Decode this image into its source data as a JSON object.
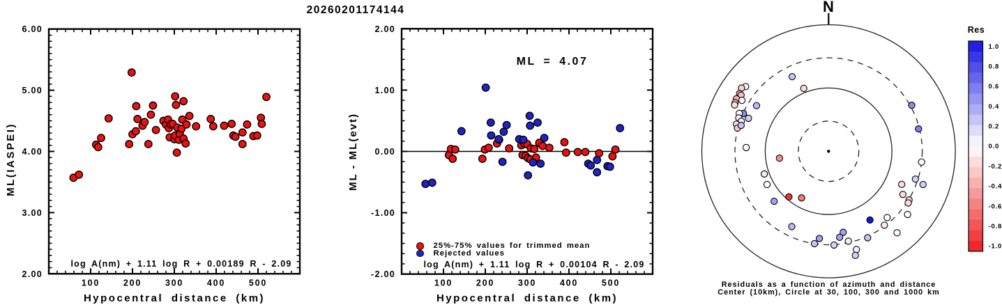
{
  "title": "20260201174144",
  "left_panel": {
    "ylabel": "ML(IASPEI)",
    "xlabel": "Hypocentral distance (km)",
    "formula": "log A(nm) + 1.11 log R + 0.00189 R - 2.09",
    "ytick_labels": [
      "6.00",
      "5.00",
      "4.00",
      "3.00",
      "2.00"
    ],
    "xtick_labels": [
      "100",
      "200",
      "300",
      "400",
      "500"
    ]
  },
  "middle_panel": {
    "ylabel": "ML - ML(evt)",
    "xlabel": "Hypocentral distance (km)",
    "ml_annotation": "ML = 4.07",
    "formula": "log A(nm) + 1.11 log R + 0.00104 R - 2.09",
    "legend": [
      {
        "label": "25%-75% values for trimmed mean",
        "color": "#ee1111"
      },
      {
        "label": "Rejected values",
        "color": "#2222cc"
      }
    ],
    "ytick_labels": [
      "2.00",
      "1.00",
      "0.00",
      "-1.00",
      "-2.00"
    ],
    "xtick_labels": [
      "100",
      "200",
      "300",
      "400",
      "500"
    ]
  },
  "polar_panel": {
    "north_label": "N",
    "caption_line1": "Residuals as a function of azimuth and distance",
    "caption_line2": "Center (10km), Circle at 30, 100, 300 and 1000 km"
  },
  "colorbar": {
    "title": "Res",
    "tick_labels": [
      "1.0",
      "0.8",
      "0.6",
      "0.4",
      "0.2",
      "0.0",
      "-0.2",
      "-0.4",
      "-0.6",
      "-0.8",
      "-1.0"
    ],
    "blue_hex": "#1414e1",
    "red_hex": "#ee1e1e"
  },
  "chart_data": [
    {
      "type": "scatter",
      "panel": "left",
      "title": "20260201174144",
      "xlabel": "Hypocentral distance (km)",
      "ylabel": "ML(IASPEI)",
      "xlim": [
        0,
        600
      ],
      "ylim": [
        2,
        6
      ],
      "xticks": [
        100,
        200,
        300,
        400,
        500
      ],
      "yticks": [
        6,
        5,
        4,
        3,
        2
      ],
      "x_minor_step": 20,
      "y_minor_divisions": 10,
      "annotation": "log A(nm) + 1.11 log R + 0.00189 R - 2.09",
      "marker_color": "#ee1111",
      "points": [
        [
          59,
          3.57
        ],
        [
          72,
          3.62
        ],
        [
          113,
          4.11
        ],
        [
          118,
          4.07
        ],
        [
          125,
          4.22
        ],
        [
          143,
          4.54
        ],
        [
          192,
          4.12
        ],
        [
          198,
          5.29
        ],
        [
          200,
          4.28
        ],
        [
          208,
          4.33
        ],
        [
          209,
          4.74
        ],
        [
          212,
          4.53
        ],
        [
          224,
          4.42
        ],
        [
          229,
          4.48
        ],
        [
          238,
          4.12
        ],
        [
          244,
          4.6
        ],
        [
          249,
          4.75
        ],
        [
          256,
          4.35
        ],
        [
          274,
          4.5
        ],
        [
          280,
          4.44
        ],
        [
          285,
          4.52
        ],
        [
          287,
          4.38
        ],
        [
          289,
          4.23
        ],
        [
          291,
          4.44
        ],
        [
          296,
          4.45
        ],
        [
          300,
          4.2
        ],
        [
          302,
          4.26
        ],
        [
          302,
          4.9
        ],
        [
          304,
          4.76
        ],
        [
          306,
          3.98
        ],
        [
          307,
          4.39
        ],
        [
          311,
          4.19
        ],
        [
          313,
          4.29
        ],
        [
          317,
          4.37
        ],
        [
          319,
          4.52
        ],
        [
          322,
          4.21
        ],
        [
          322,
          4.82
        ],
        [
          327,
          4.13
        ],
        [
          329,
          4.44
        ],
        [
          336,
          4.58
        ],
        [
          352,
          4.41
        ],
        [
          387,
          4.53
        ],
        [
          393,
          4.41
        ],
        [
          419,
          4.42
        ],
        [
          437,
          4.45
        ],
        [
          441,
          4.26
        ],
        [
          446,
          4.24
        ],
        [
          463,
          4.31
        ],
        [
          463,
          4.12
        ],
        [
          474,
          4.44
        ],
        [
          489,
          4.25
        ],
        [
          498,
          4.26
        ],
        [
          507,
          4.55
        ],
        [
          509,
          4.45
        ],
        [
          520,
          4.89
        ]
      ]
    },
    {
      "type": "scatter",
      "panel": "middle",
      "xlabel": "Hypocentral distance (km)",
      "ylabel": "ML - ML(evt)",
      "xlim": [
        0,
        600
      ],
      "ylim": [
        -2,
        2
      ],
      "xticks": [
        100,
        200,
        300,
        400,
        500
      ],
      "yticks": [
        2,
        1,
        0,
        -1,
        -2
      ],
      "x_minor_step": 20,
      "y_minor_divisions": 6,
      "hline": 0,
      "annotation": "ML = 4.07",
      "formula": "log A(nm) + 1.11 log R + 0.00104 R - 2.09",
      "series": [
        {
          "name": "25%-75% values for trimmed mean",
          "color": "#ee1111",
          "points": [
            [
              113,
              -0.06
            ],
            [
              118,
              0.04
            ],
            [
              122,
              -0.12
            ],
            [
              128,
              0.03
            ],
            [
              193,
              -0.12
            ],
            [
              199,
              0.03
            ],
            [
              208,
              0.06
            ],
            [
              228,
              0.13
            ],
            [
              233,
              0.19
            ],
            [
              257,
              0.05
            ],
            [
              286,
              0.1
            ],
            [
              289,
              -0.06
            ],
            [
              291,
              0.16
            ],
            [
              294,
              0.12
            ],
            [
              296,
              -0.07
            ],
            [
              300,
              0.12
            ],
            [
              302,
              -0.11
            ],
            [
              308,
              -0.13
            ],
            [
              309,
              0.05
            ],
            [
              317,
              0.04
            ],
            [
              321,
              -0.1
            ],
            [
              329,
              0.14
            ],
            [
              337,
              0.09
            ],
            [
              353,
              0.06
            ],
            [
              389,
              0.15
            ],
            [
              393,
              -0.02
            ],
            [
              421,
              -0.01
            ],
            [
              439,
              -0.01
            ],
            [
              472,
              -0.03
            ],
            [
              504,
              -0.08
            ],
            [
              511,
              0.03
            ]
          ]
        },
        {
          "name": "Rejected values",
          "color": "#2222cc",
          "points": [
            [
              57,
              -0.53
            ],
            [
              73,
              -0.51
            ],
            [
              143,
              0.33
            ],
            [
              201,
              1.04
            ],
            [
              213,
              0.47
            ],
            [
              214,
              0.26
            ],
            [
              232,
              0.2
            ],
            [
              241,
              -0.17
            ],
            [
              244,
              0.32
            ],
            [
              251,
              0.43
            ],
            [
              281,
              0.2
            ],
            [
              291,
              0.19
            ],
            [
              302,
              -0.39
            ],
            [
              306,
              0.58
            ],
            [
              307,
              0.42
            ],
            [
              314,
              -0.18
            ],
            [
              325,
              0.47
            ],
            [
              332,
              -0.2
            ],
            [
              341,
              0.22
            ],
            [
              446,
              -0.2
            ],
            [
              452,
              -0.23
            ],
            [
              467,
              -0.14
            ],
            [
              467,
              -0.34
            ],
            [
              492,
              -0.24
            ],
            [
              498,
              -0.25
            ],
            [
              522,
              0.38
            ]
          ]
        }
      ]
    },
    {
      "type": "polar_scatter",
      "panel": "right",
      "caption": [
        "Residuals as a function of azimuth and distance",
        "Center (10km), Circle at 30, 100, 300 and 1000 km"
      ],
      "north_label": "N",
      "center_km": 10,
      "solid_circles_km": [
        100,
        1000
      ],
      "dashed_circles_km": [
        30,
        300
      ],
      "radial_scale": "log10(distance/10)",
      "color_range": [
        -1,
        1
      ],
      "points_az_km_res": [
        [
          308,
          458,
          -0.05
        ],
        [
          306,
          500,
          -0.2
        ],
        [
          303,
          472,
          -0.35
        ],
        [
          302.7,
          437,
          -0.3
        ],
        [
          299.7,
          472,
          -0.35
        ],
        [
          297.5,
          460,
          -0.3
        ],
        [
          296.3,
          450,
          -0.15
        ],
        [
          300.5,
          385,
          0.0
        ],
        [
          294,
          295,
          0.5
        ],
        [
          293,
          340,
          0.0
        ],
        [
          290.4,
          325,
          0.05
        ],
        [
          292.4,
          233,
          0.2
        ],
        [
          289,
          286,
          0.05
        ],
        [
          286.4,
          327,
          -0.1
        ],
        [
          284.3,
          305,
          -0.25
        ],
        [
          286.5,
          275,
          0.25
        ],
        [
          302.4,
          222,
          0.3
        ],
        [
          334,
          205,
          0.25
        ],
        [
          338.5,
          117,
          -0.15
        ],
        [
          61,
          316,
          0.5
        ],
        [
          76,
          290,
          0.55
        ],
        [
          96.6,
          300,
          0.0
        ],
        [
          107.8,
          275,
          0.2
        ],
        [
          109.4,
          380,
          0.2
        ],
        [
          114.4,
          185,
          -0.15
        ],
        [
          120.2,
          227,
          -0.15
        ],
        [
          121.2,
          305,
          -0.2
        ],
        [
          123,
          315,
          -0.15
        ],
        [
          128.7,
          395,
          0.0
        ],
        [
          140,
          480,
          0.0
        ],
        [
          138.6,
          250,
          0.0
        ],
        [
          143,
          290,
          -0.1
        ],
        [
          149,
          185,
          1.0
        ],
        [
          155.7,
          315,
          0.25
        ],
        [
          164.2,
          410,
          0.05
        ],
        [
          165.6,
          500,
          0.2
        ],
        [
          167.6,
          285,
          -0.1
        ],
        [
          169.8,
          200,
          0.4
        ],
        [
          172.7,
          235,
          0.4
        ],
        [
          176.7,
          305,
          0.2
        ],
        [
          186,
          243,
          0.4
        ],
        [
          188.7,
          300,
          0.25
        ],
        [
          206,
          211,
          0.3
        ],
        [
          227.4,
          147,
          0.4
        ],
        [
          221,
          90,
          -0.9
        ],
        [
          210,
          71,
          -0.6
        ],
        [
          262,
          60.6,
          -0.5
        ],
        [
          241.6,
          127,
          0.0
        ],
        [
          250.5,
          119,
          -0.1
        ],
        [
          272.6,
          200,
          0.0
        ]
      ]
    },
    {
      "type": "colorbar",
      "title": "Res",
      "range": [
        -1,
        1
      ],
      "segments": 20,
      "ticks": [
        1.0,
        0.8,
        0.6,
        0.4,
        0.2,
        0.0,
        -0.2,
        -0.4,
        -0.6,
        -0.8,
        -1.0
      ]
    }
  ]
}
